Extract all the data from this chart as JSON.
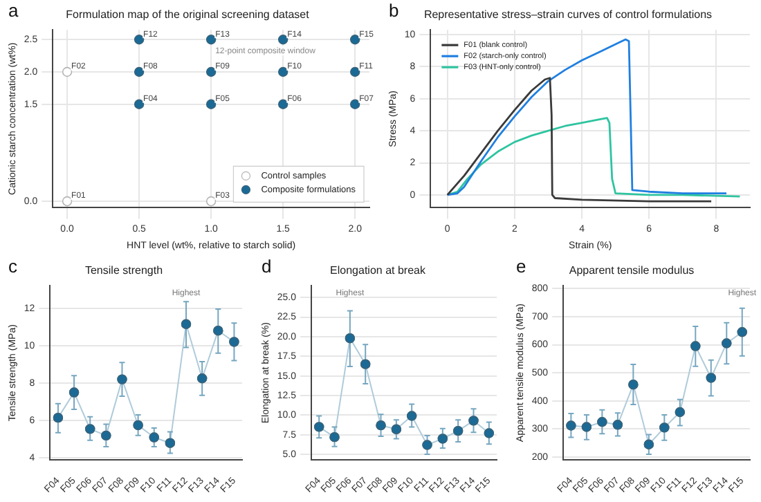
{
  "chart_data": [
    {
      "type": "scatter",
      "title": "Formulation map of the original screening dataset",
      "xlabel": "HNT level (wt%, relative to starch solid)",
      "ylabel": "Cationic starch concentration (wt%)",
      "series": [
        {
          "name": "Control samples",
          "color": "#ffffff",
          "x": [
            0,
            0,
            1
          ],
          "values": [
            0,
            2,
            0
          ]
        },
        {
          "name": "Composite formulations",
          "color": "#1b6a96",
          "x": [
            0.5,
            1,
            1.5,
            2,
            0.5,
            1,
            1.5,
            2,
            0.5,
            1,
            1.5,
            2
          ],
          "values": [
            1.5,
            1.5,
            1.5,
            1.5,
            2,
            2,
            2,
            2,
            2.5,
            2.5,
            2.5,
            2.5
          ]
        }
      ],
      "xlim": [
        -0.1,
        2.1
      ],
      "xticks": [
        {
          "value": 0,
          "label": "0.0"
        },
        {
          "value": 0.5,
          "label": "0.5"
        },
        {
          "value": 1,
          "label": "1.0"
        },
        {
          "value": 1.5,
          "label": "1.5"
        },
        {
          "value": 2,
          "label": "2.0"
        }
      ],
      "ylim": [
        -0.1,
        2.65
      ],
      "yticks": [
        {
          "value": 0,
          "label": "0.0"
        },
        {
          "value": 1.5,
          "label": "1.5"
        },
        {
          "value": 2,
          "label": "2.0"
        },
        {
          "value": 2.5,
          "label": "2.5"
        }
      ],
      "grid": true,
      "legend": "bottom right",
      "marker": "circle",
      "annotations": [
        "a",
        {
          "text": "F01",
          "x": 0,
          "y": 0
        },
        {
          "text": "F02",
          "x": 0,
          "y": 2
        },
        {
          "text": "F03",
          "x": 1,
          "y": 0
        },
        {
          "text": "F04",
          "x": 0.5,
          "y": 1.5
        },
        {
          "text": "F05",
          "x": 1,
          "y": 1.5
        },
        {
          "text": "F06",
          "x": 1.5,
          "y": 1.5
        },
        {
          "text": "F07",
          "x": 2,
          "y": 1.5
        },
        {
          "text": "F08",
          "x": 0.5,
          "y": 2
        },
        {
          "text": "F09",
          "x": 1,
          "y": 2
        },
        {
          "text": "F10",
          "x": 1.5,
          "y": 2
        },
        {
          "text": "F11",
          "x": 2,
          "y": 2
        },
        {
          "text": "F12",
          "x": 0.5,
          "y": 2.5
        },
        {
          "text": "F13",
          "x": 1,
          "y": 2.5
        },
        {
          "text": "F14",
          "x": 1.5,
          "y": 2.5
        },
        {
          "text": "F15",
          "x": 2,
          "y": 2.5
        },
        "12-point composite window"
      ]
    },
    {
      "type": "line",
      "title": "Representative stress–strain curves of control formulations",
      "xlabel": "Strain (%)",
      "ylabel": "Stress (MPa)",
      "series": [
        {
          "name": "F01 (blank control)",
          "color": "#3a3a3a",
          "x": [
            0,
            0.5,
            1,
            1.5,
            2,
            2.5,
            2.9,
            3.05,
            3.1,
            3.12,
            3.2,
            4,
            6,
            7.85
          ],
          "values": [
            0,
            1.2,
            2.6,
            4.0,
            5.3,
            6.5,
            7.2,
            7.3,
            5,
            0,
            -0.2,
            -0.3,
            -0.4,
            -0.4
          ]
        },
        {
          "name": "F02 (starch-only control)",
          "color": "#1f7fe0",
          "x": [
            0,
            0.3,
            0.5,
            1,
            1.5,
            2,
            2.5,
            3,
            3.5,
            4,
            4.5,
            5,
            5.3,
            5.4,
            5.45,
            5.5,
            6,
            7,
            8.3
          ],
          "values": [
            0,
            0.1,
            0.5,
            2.1,
            3.6,
            4.9,
            6.1,
            7.1,
            7.8,
            8.4,
            8.9,
            9.4,
            9.7,
            9.6,
            5,
            0.3,
            0.2,
            0.1,
            0.1
          ]
        },
        {
          "name": "F03 (HNT-only control)",
          "color": "#2ec4a0",
          "x": [
            0,
            0.3,
            0.6,
            1,
            1.5,
            2,
            2.5,
            3,
            3.5,
            4,
            4.5,
            4.75,
            4.82,
            4.9,
            5,
            6,
            7,
            8.7
          ],
          "values": [
            0,
            0.2,
            1.0,
            1.9,
            2.7,
            3.3,
            3.7,
            4.0,
            4.3,
            4.5,
            4.7,
            4.8,
            4.5,
            1,
            0.1,
            0,
            0,
            -0.1
          ]
        }
      ],
      "xlim": [
        -0.5,
        9
      ],
      "xticks": [
        0,
        2,
        4,
        6,
        8
      ],
      "ylim": [
        -0.8,
        10.3
      ],
      "yticks": [
        0,
        2,
        4,
        6,
        8,
        10
      ],
      "grid": true,
      "legend": "top left",
      "marker": "none",
      "annotations": [
        "b"
      ]
    },
    {
      "type": "line",
      "title": "Tensile strength",
      "ylabel": "Tensile strength (MPa)",
      "categories": [
        "F04",
        "F05",
        "F06",
        "F07",
        "F08",
        "F09",
        "F10",
        "F11",
        "F12",
        "F13",
        "F14",
        "F15"
      ],
      "values": [
        6.15,
        7.5,
        5.55,
        5.2,
        8.2,
        5.75,
        5.1,
        4.8,
        11.15,
        8.25,
        10.8,
        10.2
      ],
      "errors": [
        [
          5.35,
          6.9
        ],
        [
          6.6,
          8.4
        ],
        [
          4.95,
          6.2
        ],
        [
          4.6,
          5.8
        ],
        [
          7.3,
          9.1
        ],
        [
          5.2,
          6.3
        ],
        [
          4.6,
          5.6
        ],
        [
          4.25,
          5.4
        ],
        [
          9.9,
          12.35
        ],
        [
          7.35,
          9.15
        ],
        [
          9.6,
          11.95
        ],
        [
          9.2,
          11.2
        ]
      ],
      "color": "#1b6a96",
      "ylim": [
        3.9,
        13.2
      ],
      "yticks": [
        4,
        6,
        8,
        10,
        12
      ],
      "grid": "y",
      "marker": "circle",
      "annotations": [
        "c",
        "Highest"
      ]
    },
    {
      "type": "line",
      "title": "Elongation at break",
      "ylabel": "Elongation at break (%)",
      "categories": [
        "F04",
        "F05",
        "F06",
        "F07",
        "F08",
        "F09",
        "F10",
        "F11",
        "F12",
        "F13",
        "F14",
        "F15"
      ],
      "values": [
        8.5,
        7.2,
        19.8,
        16.5,
        8.7,
        8.2,
        9.9,
        6.2,
        7.0,
        8.0,
        9.3,
        7.7
      ],
      "errors": [
        [
          7.1,
          9.9
        ],
        [
          6.0,
          8.5
        ],
        [
          16.2,
          23.3
        ],
        [
          14.0,
          19.0
        ],
        [
          7.3,
          10.1
        ],
        [
          7.0,
          9.4
        ],
        [
          8.5,
          11.4
        ],
        [
          5.0,
          7.4
        ],
        [
          5.8,
          8.3
        ],
        [
          6.6,
          9.4
        ],
        [
          7.8,
          10.8
        ],
        [
          6.3,
          9.1
        ]
      ],
      "color": "#1b6a96",
      "ylim": [
        4.3,
        26.5
      ],
      "yticks": [
        {
          "value": 5,
          "label": "5.0"
        },
        {
          "value": 7.5,
          "label": "7.5"
        },
        {
          "value": 10,
          "label": "10.0"
        },
        {
          "value": 12.5,
          "label": "12.5"
        },
        {
          "value": 15,
          "label": "15.0"
        },
        {
          "value": 17.5,
          "label": "17.5"
        },
        {
          "value": 20,
          "label": "20.0"
        },
        {
          "value": 22.5,
          "label": "22.5"
        },
        {
          "value": 25,
          "label": "25.0"
        }
      ],
      "grid": "y",
      "marker": "circle",
      "annotations": [
        "d",
        "Highest"
      ]
    },
    {
      "type": "line",
      "title": "Apparent tensile modulus",
      "ylabel": "Apparent tensile modulus (MPa)",
      "categories": [
        "F04",
        "F05",
        "F06",
        "F07",
        "F08",
        "F09",
        "F10",
        "F11",
        "F12",
        "F13",
        "F14",
        "F15"
      ],
      "values": [
        312,
        307,
        325,
        315,
        458,
        245,
        305,
        360,
        595,
        482,
        605,
        645
      ],
      "errors": [
        [
          270,
          355
        ],
        [
          262,
          350
        ],
        [
          283,
          368
        ],
        [
          275,
          357
        ],
        [
          387,
          530
        ],
        [
          210,
          280
        ],
        [
          260,
          350
        ],
        [
          312,
          405
        ],
        [
          523,
          665
        ],
        [
          418,
          545
        ],
        [
          532,
          678
        ],
        [
          560,
          730
        ]
      ],
      "color": "#1b6a96",
      "ylim": [
        190,
        810
      ],
      "yticks": [
        200,
        300,
        400,
        500,
        600,
        700,
        800
      ],
      "grid": "y",
      "marker": "circle",
      "annotations": [
        "e",
        "Highest"
      ]
    }
  ]
}
